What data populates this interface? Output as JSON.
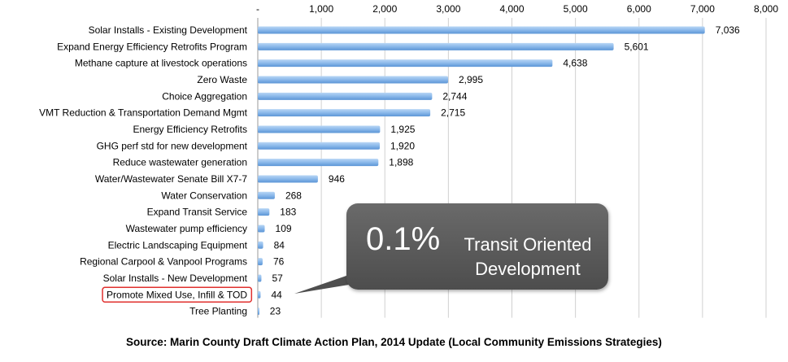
{
  "chart_data": {
    "type": "bar",
    "orientation": "horizontal",
    "categories": [
      "Solar Installs - Existing Development",
      "Expand Energy Efficiency Retrofits Program",
      "Methane capture at livestock operations",
      "Zero Waste",
      "Choice Aggregation",
      "VMT Reduction & Transportation Demand Mgmt",
      "Energy Efficiency Retrofits",
      "GHG perf std for new development",
      "Reduce wastewater generation",
      "Water/Wastewater Senate Bill X7-7",
      "Water Conservation",
      "Expand Transit Service",
      "Wastewater pump efficiency",
      "Electric Landscaping Equipment",
      "Regional Carpool & Vanpool Programs",
      "Solar Installs - New Development",
      "Promote Mixed Use, Infill & TOD",
      "Tree Planting"
    ],
    "values": [
      7036,
      5601,
      4638,
      2995,
      2744,
      2715,
      1925,
      1920,
      1898,
      946,
      268,
      183,
      109,
      84,
      76,
      57,
      44,
      23
    ],
    "value_labels": [
      "7,036",
      "5,601",
      "4,638",
      "2,995",
      "2,744",
      "2,715",
      "1,925",
      "1,920",
      "1,898",
      "946",
      "268",
      "183",
      "109",
      "84",
      "76",
      "57",
      "44",
      "23"
    ],
    "xlim": [
      0,
      8000
    ],
    "xticks": [
      0,
      1000,
      2000,
      3000,
      4000,
      5000,
      6000,
      7000,
      8000
    ],
    "xtick_labels": [
      "-",
      "1,000",
      "2,000",
      "3,000",
      "4,000",
      "5,000",
      "6,000",
      "7,000",
      "8,000"
    ],
    "axis_position": "top",
    "gridlines": true,
    "highlighted_category": "Promote Mixed Use, Infill & TOD",
    "title": "",
    "xlabel": "",
    "ylabel": ""
  },
  "callout": {
    "percent": "0.1%",
    "text": "Transit Oriented Development"
  },
  "source_text": "Source: Marin County Draft Climate Action Plan, 2014 Update (Local Community Emissions Strategies)",
  "colors": {
    "bar_top": "#a9cbf0",
    "bar_bottom": "#5b95d6",
    "highlight_border": "#e0302e",
    "gridline": "#d0d0d0",
    "callout_bg": "#5c5c5c"
  }
}
